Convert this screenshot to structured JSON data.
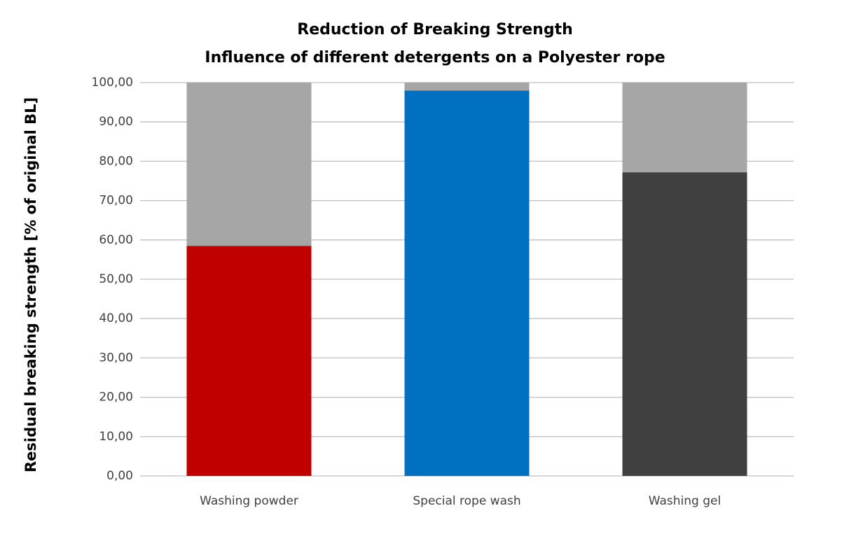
{
  "chart_data": {
    "type": "stacked_bar",
    "title": "Reduction of Breaking Strength",
    "subtitle": "Influence of different detergents on a Polyester rope",
    "y_label": "Residual breaking strength [% of original BL]",
    "categories": [
      "Washing powder",
      "Special rope wash",
      "Washing gel"
    ],
    "series": [
      {
        "colors": [
          "#c00000",
          "#0070c0",
          "#404040"
        ],
        "values": [
          58.5,
          98.0,
          77.2
        ]
      },
      {
        "color": "#a6a6a6",
        "values": [
          41.5,
          2.0,
          22.8
        ]
      }
    ],
    "ylim": [
      0,
      100
    ],
    "yticks": [
      {
        "value": 0,
        "label": "0,00"
      },
      {
        "value": 10,
        "label": "10,00"
      },
      {
        "value": 20,
        "label": "20,00"
      },
      {
        "value": 30,
        "label": "30,00"
      },
      {
        "value": 40,
        "label": "40,00"
      },
      {
        "value": 50,
        "label": "50,00"
      },
      {
        "value": 60,
        "label": "60,00"
      },
      {
        "value": 70,
        "label": "70,00"
      },
      {
        "value": 80,
        "label": "80,00"
      },
      {
        "value": 90,
        "label": "90,00"
      },
      {
        "value": 100,
        "label": "100,00"
      }
    ],
    "grid": true
  }
}
